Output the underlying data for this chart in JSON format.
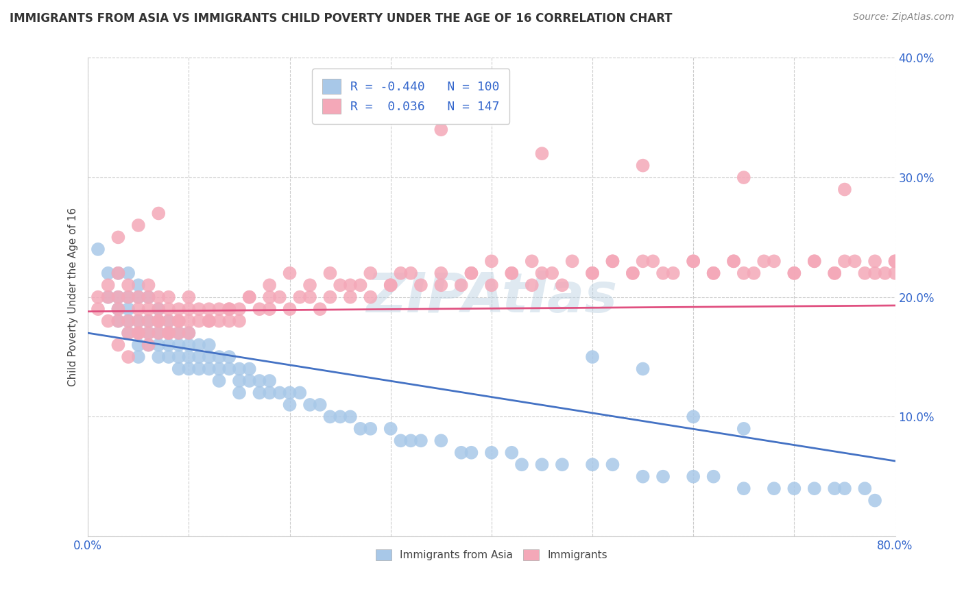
{
  "title": "IMMIGRANTS FROM ASIA VS IMMIGRANTS CHILD POVERTY UNDER THE AGE OF 16 CORRELATION CHART",
  "source": "Source: ZipAtlas.com",
  "ylabel": "Child Poverty Under the Age of 16",
  "xlim": [
    0,
    0.8
  ],
  "ylim": [
    0,
    0.4
  ],
  "xticks": [
    0.0,
    0.1,
    0.2,
    0.3,
    0.4,
    0.5,
    0.6,
    0.7,
    0.8
  ],
  "yticks": [
    0.0,
    0.1,
    0.2,
    0.3,
    0.4
  ],
  "blue_R": -0.44,
  "blue_N": 100,
  "pink_R": 0.036,
  "pink_N": 147,
  "blue_color": "#a8c8e8",
  "pink_color": "#f4a8b8",
  "blue_line_color": "#4472c4",
  "pink_line_color": "#e05080",
  "legend_label_blue": "Immigrants from Asia",
  "legend_label_pink": "Immigrants",
  "blue_line_x0": 0.0,
  "blue_line_y0": 0.17,
  "blue_line_x1": 0.8,
  "blue_line_y1": 0.063,
  "pink_line_x0": 0.0,
  "pink_line_y0": 0.188,
  "pink_line_x1": 0.8,
  "pink_line_y1": 0.193,
  "blue_scatter_x": [
    0.01,
    0.02,
    0.02,
    0.03,
    0.03,
    0.03,
    0.03,
    0.04,
    0.04,
    0.04,
    0.04,
    0.04,
    0.05,
    0.05,
    0.05,
    0.05,
    0.05,
    0.05,
    0.06,
    0.06,
    0.06,
    0.06,
    0.07,
    0.07,
    0.07,
    0.07,
    0.07,
    0.08,
    0.08,
    0.08,
    0.08,
    0.09,
    0.09,
    0.09,
    0.09,
    0.1,
    0.1,
    0.1,
    0.1,
    0.11,
    0.11,
    0.11,
    0.12,
    0.12,
    0.12,
    0.13,
    0.13,
    0.13,
    0.14,
    0.14,
    0.15,
    0.15,
    0.15,
    0.16,
    0.16,
    0.17,
    0.17,
    0.18,
    0.18,
    0.19,
    0.2,
    0.2,
    0.21,
    0.22,
    0.23,
    0.24,
    0.25,
    0.26,
    0.27,
    0.28,
    0.3,
    0.31,
    0.32,
    0.33,
    0.35,
    0.37,
    0.38,
    0.4,
    0.42,
    0.43,
    0.45,
    0.47,
    0.5,
    0.52,
    0.55,
    0.57,
    0.6,
    0.62,
    0.65,
    0.68,
    0.7,
    0.72,
    0.74,
    0.75,
    0.77,
    0.78,
    0.5,
    0.55,
    0.6,
    0.65
  ],
  "blue_scatter_y": [
    0.24,
    0.22,
    0.2,
    0.22,
    0.2,
    0.19,
    0.18,
    0.22,
    0.2,
    0.19,
    0.18,
    0.17,
    0.21,
    0.2,
    0.18,
    0.17,
    0.16,
    0.15,
    0.2,
    0.18,
    0.17,
    0.16,
    0.19,
    0.18,
    0.17,
    0.16,
    0.15,
    0.18,
    0.17,
    0.16,
    0.15,
    0.17,
    0.16,
    0.15,
    0.14,
    0.17,
    0.16,
    0.15,
    0.14,
    0.16,
    0.15,
    0.14,
    0.16,
    0.15,
    0.14,
    0.15,
    0.14,
    0.13,
    0.15,
    0.14,
    0.14,
    0.13,
    0.12,
    0.14,
    0.13,
    0.13,
    0.12,
    0.13,
    0.12,
    0.12,
    0.12,
    0.11,
    0.12,
    0.11,
    0.11,
    0.1,
    0.1,
    0.1,
    0.09,
    0.09,
    0.09,
    0.08,
    0.08,
    0.08,
    0.08,
    0.07,
    0.07,
    0.07,
    0.07,
    0.06,
    0.06,
    0.06,
    0.06,
    0.06,
    0.05,
    0.05,
    0.05,
    0.05,
    0.04,
    0.04,
    0.04,
    0.04,
    0.04,
    0.04,
    0.04,
    0.03,
    0.15,
    0.14,
    0.1,
    0.09
  ],
  "pink_scatter_x": [
    0.01,
    0.01,
    0.02,
    0.02,
    0.02,
    0.03,
    0.03,
    0.03,
    0.03,
    0.04,
    0.04,
    0.04,
    0.04,
    0.05,
    0.05,
    0.05,
    0.05,
    0.06,
    0.06,
    0.06,
    0.06,
    0.06,
    0.07,
    0.07,
    0.07,
    0.07,
    0.08,
    0.08,
    0.08,
    0.08,
    0.09,
    0.09,
    0.09,
    0.1,
    0.1,
    0.1,
    0.11,
    0.11,
    0.12,
    0.12,
    0.13,
    0.13,
    0.14,
    0.14,
    0.15,
    0.15,
    0.16,
    0.17,
    0.18,
    0.18,
    0.19,
    0.2,
    0.21,
    0.22,
    0.23,
    0.24,
    0.25,
    0.26,
    0.27,
    0.28,
    0.3,
    0.31,
    0.33,
    0.35,
    0.37,
    0.38,
    0.4,
    0.42,
    0.44,
    0.45,
    0.47,
    0.5,
    0.52,
    0.54,
    0.55,
    0.57,
    0.6,
    0.62,
    0.64,
    0.65,
    0.67,
    0.7,
    0.72,
    0.74,
    0.75,
    0.77,
    0.78,
    0.79,
    0.8,
    0.8,
    0.03,
    0.04,
    0.05,
    0.06,
    0.07,
    0.08,
    0.09,
    0.1,
    0.12,
    0.14,
    0.16,
    0.18,
    0.2,
    0.22,
    0.24,
    0.26,
    0.28,
    0.3,
    0.32,
    0.35,
    0.38,
    0.4,
    0.42,
    0.44,
    0.46,
    0.48,
    0.5,
    0.52,
    0.54,
    0.56,
    0.58,
    0.6,
    0.62,
    0.64,
    0.66,
    0.68,
    0.7,
    0.72,
    0.74,
    0.76,
    0.78,
    0.8,
    0.35,
    0.45,
    0.55,
    0.65,
    0.75,
    0.03,
    0.05,
    0.07
  ],
  "pink_scatter_y": [
    0.2,
    0.19,
    0.21,
    0.2,
    0.18,
    0.22,
    0.2,
    0.19,
    0.18,
    0.21,
    0.2,
    0.18,
    0.17,
    0.2,
    0.19,
    0.18,
    0.17,
    0.21,
    0.2,
    0.19,
    0.18,
    0.17,
    0.2,
    0.19,
    0.18,
    0.17,
    0.2,
    0.19,
    0.18,
    0.17,
    0.19,
    0.18,
    0.17,
    0.2,
    0.19,
    0.18,
    0.19,
    0.18,
    0.19,
    0.18,
    0.19,
    0.18,
    0.19,
    0.18,
    0.19,
    0.18,
    0.2,
    0.19,
    0.2,
    0.19,
    0.2,
    0.19,
    0.2,
    0.2,
    0.19,
    0.2,
    0.21,
    0.2,
    0.21,
    0.2,
    0.21,
    0.22,
    0.21,
    0.22,
    0.21,
    0.22,
    0.21,
    0.22,
    0.21,
    0.22,
    0.21,
    0.22,
    0.23,
    0.22,
    0.23,
    0.22,
    0.23,
    0.22,
    0.23,
    0.22,
    0.23,
    0.22,
    0.23,
    0.22,
    0.23,
    0.22,
    0.23,
    0.22,
    0.23,
    0.22,
    0.16,
    0.15,
    0.17,
    0.16,
    0.18,
    0.17,
    0.18,
    0.17,
    0.18,
    0.19,
    0.2,
    0.21,
    0.22,
    0.21,
    0.22,
    0.21,
    0.22,
    0.21,
    0.22,
    0.21,
    0.22,
    0.23,
    0.22,
    0.23,
    0.22,
    0.23,
    0.22,
    0.23,
    0.22,
    0.23,
    0.22,
    0.23,
    0.22,
    0.23,
    0.22,
    0.23,
    0.22,
    0.23,
    0.22,
    0.23,
    0.22,
    0.23,
    0.34,
    0.32,
    0.31,
    0.3,
    0.29,
    0.25,
    0.26,
    0.27
  ]
}
